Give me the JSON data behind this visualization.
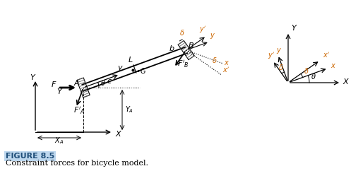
{
  "title": "FIGURE 8.5",
  "caption": "Constraint forces for bicycle model.",
  "title_color": "#1F4E79",
  "title_bg": "#BDD7EE",
  "bg_color": "#ffffff",
  "theta_deg": 20,
  "delta_deg": 15,
  "orange": "#CC6600"
}
